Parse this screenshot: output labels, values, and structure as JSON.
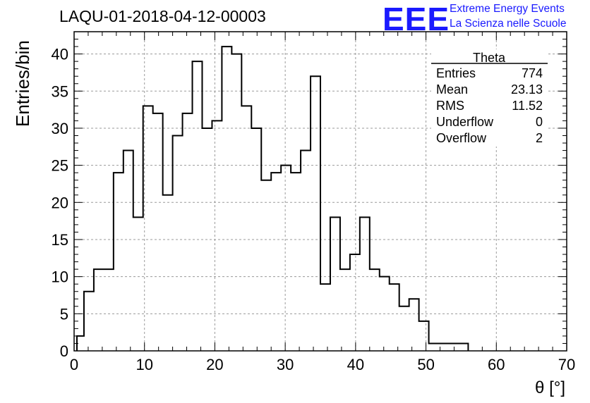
{
  "page": {
    "title": "LAQU-01-2018-04-12-00003",
    "logo": {
      "mark": "EEE",
      "line1": "Extreme Energy Events",
      "line2": "La Scienza nelle Scuole",
      "color": "#1a1aff"
    }
  },
  "stats": {
    "name": "Theta",
    "rows": [
      {
        "label": "Entries",
        "value": "774"
      },
      {
        "label": "Mean",
        "value": "23.13"
      },
      {
        "label": "RMS",
        "value": "11.52"
      },
      {
        "label": "Underflow",
        "value": "0"
      },
      {
        "label": "Overflow",
        "value": "2"
      }
    ]
  },
  "chart_data": {
    "type": "histogram",
    "xlabel": "θ [°]",
    "ylabel": "Entries/bin",
    "xlim": [
      0,
      70
    ],
    "ylim": [
      0,
      43
    ],
    "xticks": [
      0,
      10,
      20,
      30,
      40,
      50,
      60,
      70
    ],
    "yticks": [
      0,
      5,
      10,
      15,
      20,
      25,
      30,
      35,
      40
    ],
    "grid": true,
    "bin_edges": [
      0.4,
      1.4,
      2.8,
      4.2,
      5.6,
      7.0,
      8.4,
      9.8,
      11.2,
      12.6,
      14.0,
      15.4,
      16.8,
      18.2,
      19.6,
      21.0,
      22.4,
      23.8,
      25.2,
      26.6,
      28.0,
      29.4,
      30.8,
      32.2,
      33.6,
      35.0,
      36.4,
      37.8,
      39.2,
      40.6,
      42.0,
      43.4,
      44.8,
      46.2,
      47.6,
      49.0,
      50.4,
      51.8,
      53.2,
      54.6,
      56.0
    ],
    "counts": [
      2,
      8,
      11,
      11,
      24,
      27,
      18,
      33,
      32,
      21,
      29,
      32,
      39,
      30,
      31,
      41,
      40,
      33,
      30,
      23,
      24,
      25,
      24,
      27,
      37,
      9,
      18,
      11,
      13,
      18,
      11,
      10,
      9,
      6,
      7,
      4,
      1,
      1,
      1,
      1
    ],
    "color": "#000000"
  }
}
